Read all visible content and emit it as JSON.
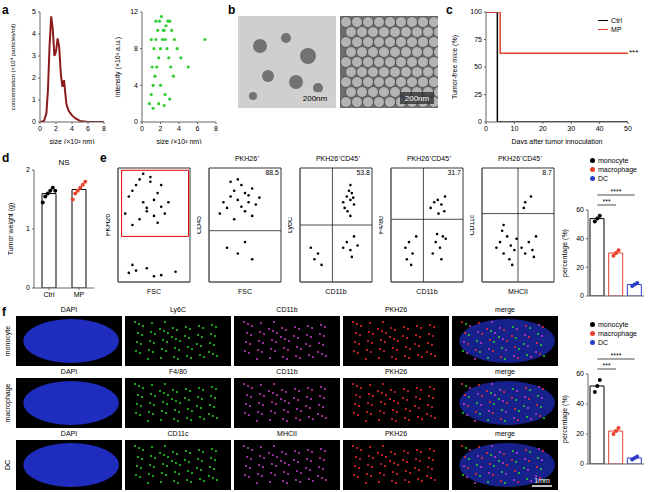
{
  "chart_data": [
    {
      "panel": "a",
      "type": "line",
      "x_label": "size (×10² nm)",
      "y_label": "concentration (×10⁹ particles/ml)",
      "x": [
        0,
        0.5,
        0.8,
        1,
        1.2,
        1.4,
        1.6,
        1.8,
        2,
        2.2,
        2.4,
        2.6,
        2.8,
        3,
        3.3,
        3.6,
        4,
        4.5,
        5,
        6,
        7,
        8
      ],
      "values": [
        0,
        0.05,
        0.4,
        1.5,
        3.5,
        4.8,
        4.2,
        3,
        3.2,
        3.8,
        3.4,
        2.2,
        1.6,
        1.9,
        0.8,
        0.5,
        0.3,
        0.15,
        0.05,
        0,
        0,
        0
      ],
      "color": "#8b1a1a",
      "xlim": [
        0,
        8
      ],
      "xticks": [
        0,
        2,
        4,
        6,
        8
      ],
      "ylim": [
        0,
        5
      ],
      "yticks": [
        0,
        1,
        2,
        3,
        4,
        5
      ]
    },
    {
      "type": "scatter",
      "x_label": "size (×10² nm)",
      "y_label": "intensity (×10³ a.u.)",
      "color": "#33cc33",
      "xlim": [
        0,
        8
      ],
      "xticks": [
        0,
        2,
        4,
        6,
        8
      ],
      "ylim": [
        0,
        12
      ],
      "yticks": [
        0,
        4,
        8,
        12
      ],
      "x": [
        0.8,
        1,
        1.2,
        1.4,
        1.6,
        1.8,
        2,
        2.2,
        2.4,
        2.6,
        2.8,
        3,
        3.2,
        3.5,
        3.8,
        4.2,
        1.1,
        1.3,
        1.5,
        1.7,
        1.9,
        2.1,
        2.3,
        2.5,
        2.7,
        2.9,
        3.1,
        3.4,
        1,
        1.5,
        2,
        2.5,
        3,
        1.2,
        1.8,
        2.4,
        5,
        6.8
      ],
      "y": [
        2,
        3,
        4,
        5,
        6,
        7,
        8,
        9,
        10,
        10.5,
        11,
        11,
        10,
        9,
        8,
        7,
        6,
        8,
        9,
        10,
        11,
        11.5,
        10,
        9,
        8,
        7,
        6,
        5,
        9,
        11,
        4,
        3,
        2.5,
        1.5,
        2,
        1.8,
        6,
        9
      ]
    },
    {
      "panel": "c",
      "type": "line",
      "line_style": "step",
      "x_label": "Days after tumor innoculation",
      "y_label": "Tumor-free mice (%)",
      "x": [
        0,
        4,
        5,
        50
      ],
      "series": [
        {
          "name": "Ctrl",
          "color": "#000000",
          "values": [
            100,
            0,
            0,
            0
          ]
        },
        {
          "name": "MP",
          "color": "#e8412c",
          "values": [
            100,
            100,
            62.5,
            62.5
          ]
        }
      ],
      "xlim": [
        0,
        50
      ],
      "xticks": [
        0,
        10,
        20,
        30,
        40,
        50
      ],
      "ylim": [
        0,
        100
      ],
      "yticks": [
        0,
        25,
        50,
        75,
        100
      ],
      "legend": "upper right",
      "annotation": "***"
    },
    {
      "panel": "d",
      "type": "bar",
      "categories": [
        "Ctrl",
        "MP"
      ],
      "values": [
        1.6,
        1.67
      ],
      "points": [
        [
          1.45,
          1.55,
          1.6,
          1.65,
          1.7,
          1.65
        ],
        [
          1.5,
          1.6,
          1.65,
          1.7,
          1.75,
          1.8
        ]
      ],
      "colors": [
        "#000000",
        "#e8412c"
      ],
      "y_label": "Tumor weight (g)",
      "ylim": [
        0,
        2
      ],
      "yticks": [
        0,
        1,
        2
      ],
      "annotation": "NS"
    },
    {
      "panel": "e",
      "type": "scatter",
      "x_label": "FSC",
      "y_label": "PKH26",
      "tick_labels": false,
      "xlim": [
        0,
        100
      ],
      "ylim": [
        0,
        100
      ],
      "gate": {
        "x": [
          5,
          98
        ],
        "y": [
          40,
          98
        ]
      },
      "x": [
        10,
        15,
        20,
        25,
        30,
        35,
        40,
        45,
        50,
        55,
        60,
        65,
        70,
        20,
        30,
        40,
        50,
        60,
        35,
        45,
        55,
        25,
        15,
        40,
        60,
        80,
        20,
        50
      ],
      "y": [
        60,
        75,
        80,
        85,
        90,
        70,
        65,
        88,
        72,
        78,
        85,
        60,
        70,
        50,
        55,
        62,
        58,
        66,
        95,
        92,
        52,
        10,
        8,
        12,
        6,
        9,
        15,
        5
      ]
    },
    {
      "type": "scatter",
      "title": "PKH26⁺",
      "x_label": "FSC",
      "y_label": "CD45",
      "tick_labels": false,
      "xlim": [
        0,
        100
      ],
      "ylim": [
        0,
        100
      ],
      "gate": {
        "y": 45
      },
      "gate_value": 88.5,
      "x": [
        15,
        20,
        25,
        30,
        35,
        40,
        45,
        50,
        55,
        60,
        65,
        70,
        30,
        40,
        50,
        60,
        45,
        35,
        55,
        25,
        40,
        50,
        60
      ],
      "y": [
        60,
        70,
        65,
        75,
        80,
        72,
        85,
        78,
        70,
        82,
        68,
        74,
        88,
        90,
        62,
        58,
        66,
        55,
        76,
        30,
        25,
        35,
        20
      ]
    },
    {
      "type": "scatter",
      "title": "PKH26⁺CD45⁺",
      "x_label": "CD11b",
      "y_label": "Ly6C",
      "tick_labels": false,
      "xlim": [
        0,
        100
      ],
      "ylim": [
        0,
        100
      ],
      "gate": {
        "x": 45,
        "y": 50
      },
      "gate_value": 53.8,
      "x": [
        60,
        65,
        70,
        68,
        72,
        75,
        62,
        66,
        70,
        74,
        60,
        65,
        70,
        75,
        80,
        20,
        25,
        30,
        15,
        70,
        72
      ],
      "y": [
        70,
        75,
        72,
        80,
        78,
        68,
        65,
        62,
        85,
        74,
        30,
        35,
        28,
        40,
        32,
        20,
        25,
        15,
        30,
        58,
        22
      ]
    },
    {
      "type": "scatter",
      "title": "PKH26⁺CD45⁺",
      "x_label": "CD11b",
      "y_label": "F4/80",
      "tick_labels": false,
      "xlim": [
        0,
        100
      ],
      "ylim": [
        0,
        100
      ],
      "gate": {
        "x": 45,
        "y": 55
      },
      "gate_value": 31.7,
      "x": [
        55,
        60,
        65,
        70,
        75,
        62,
        68,
        72,
        58,
        64,
        70,
        76,
        20,
        25,
        30,
        35,
        22,
        28,
        66,
        74
      ],
      "y": [
        65,
        70,
        72,
        68,
        75,
        35,
        30,
        40,
        25,
        42,
        20,
        38,
        30,
        35,
        25,
        40,
        20,
        15,
        60,
        62
      ]
    },
    {
      "type": "scatter",
      "title": "PKH26⁺CD45⁺",
      "x_label": "MHCII",
      "y_label": "CD11c",
      "tick_labels": false,
      "xlim": [
        0,
        100
      ],
      "ylim": [
        0,
        100
      ],
      "gate": {
        "x": 50,
        "y": 60
      },
      "gate_value": 8.7,
      "x": [
        20,
        25,
        30,
        35,
        40,
        45,
        28,
        38,
        48,
        55,
        60,
        65,
        70,
        75,
        60,
        68,
        30,
        42,
        58,
        72
      ],
      "y": [
        30,
        35,
        25,
        40,
        32,
        28,
        45,
        20,
        38,
        30,
        25,
        35,
        28,
        40,
        70,
        75,
        50,
        15,
        65,
        22
      ]
    },
    {
      "type": "bar",
      "categories": [
        "monocyte",
        "macrophage",
        "DC"
      ],
      "values": [
        54,
        30,
        8
      ],
      "points": [
        [
          52,
          54,
          56
        ],
        [
          28,
          30,
          32
        ],
        [
          7,
          8,
          9
        ]
      ],
      "colors": [
        "#000000",
        "#e8412c",
        "#2a3cc8"
      ],
      "y_label": "percentage (%)",
      "ylim": [
        0,
        60
      ],
      "yticks": [
        0,
        20,
        40,
        60
      ],
      "tick_labels": "y",
      "legend": "upper right",
      "annotations": [
        "***",
        "****"
      ]
    },
    {
      "type": "bar",
      "categories": [
        "monocyte",
        "macrophage",
        "DC"
      ],
      "values": [
        52,
        22,
        4
      ],
      "points": [
        [
          48,
          52,
          56
        ],
        [
          20,
          22,
          24
        ],
        [
          3,
          4,
          5
        ]
      ],
      "colors": [
        "#000000",
        "#e8412c",
        "#2a3cc8"
      ],
      "y_label": "percentage (%)",
      "ylim": [
        0,
        60
      ],
      "yticks": [
        0,
        20,
        40,
        60
      ],
      "tick_labels": "y",
      "legend": "upper right",
      "annotations": [
        "***",
        "****"
      ]
    }
  ],
  "figure": {
    "b": {
      "panel": "b",
      "scale_bars": [
        "200nm",
        "200nm"
      ]
    },
    "f": {
      "panel": "f",
      "row_labels": [
        "monocyte",
        "macrophage",
        "DC"
      ],
      "channels": [
        [
          "DAPI",
          "Ly6C",
          "CD11b",
          "PKH26",
          "merge"
        ],
        [
          "DAPI",
          "F4/80",
          "CD11b",
          "PKH26",
          "merge"
        ],
        [
          "DAPI",
          "CD11c",
          "MHCII",
          "PKH26",
          "merge"
        ]
      ],
      "scale_bar": "1mm"
    }
  }
}
